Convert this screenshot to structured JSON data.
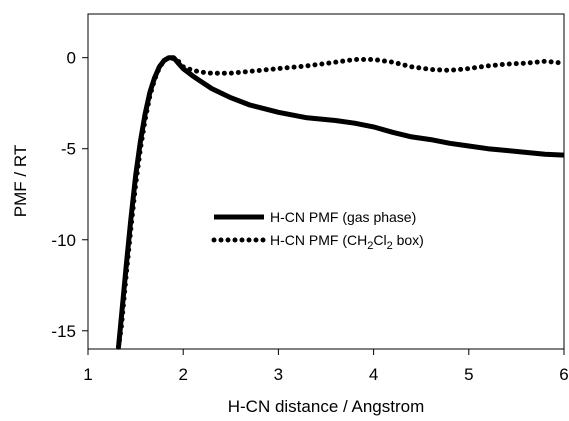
{
  "chart_data": {
    "type": "line",
    "xlabel": "H-CN distance / Angstrom",
    "ylabel": "PMF / RT",
    "xlim": [
      1,
      6
    ],
    "ylim": [
      -16,
      2.4
    ],
    "x_ticks": [
      "1",
      "2",
      "3",
      "4",
      "5",
      "6"
    ],
    "y_ticks": [
      "0",
      "-5",
      "-10",
      "-15"
    ],
    "legend_position": "center-right",
    "grid": false,
    "series": [
      {
        "name": "H-CN PMF (gas phase)",
        "style": "solid",
        "color": "#000000",
        "x": [
          1.32,
          1.35,
          1.4,
          1.45,
          1.5,
          1.55,
          1.6,
          1.65,
          1.7,
          1.75,
          1.8,
          1.85,
          1.9,
          1.95,
          2.0,
          2.1,
          2.2,
          2.3,
          2.5,
          2.7,
          3.0,
          3.3,
          3.6,
          3.8,
          4.0,
          4.2,
          4.4,
          4.6,
          4.8,
          5.0,
          5.2,
          5.4,
          5.6,
          5.8,
          6.0
        ],
        "y": [
          -15.9,
          -14.3,
          -11.5,
          -8.9,
          -6.5,
          -4.6,
          -3.1,
          -1.9,
          -1.1,
          -0.5,
          -0.15,
          0.0,
          0.0,
          -0.3,
          -0.6,
          -1.0,
          -1.35,
          -1.7,
          -2.2,
          -2.6,
          -3.0,
          -3.3,
          -3.45,
          -3.6,
          -3.8,
          -4.1,
          -4.35,
          -4.5,
          -4.7,
          -4.85,
          -5.0,
          -5.1,
          -5.2,
          -5.3,
          -5.35
        ]
      },
      {
        "name": "H-CN PMF (CH2Cl2 box)",
        "legend_main": "H-CN PMF (CH",
        "legend_sub1": "2",
        "legend_mid": "Cl",
        "legend_sub2": "2",
        "legend_end": " box)",
        "style": "dotted",
        "color": "#000000",
        "x": [
          1.32,
          1.35,
          1.4,
          1.45,
          1.5,
          1.55,
          1.6,
          1.65,
          1.7,
          1.75,
          1.8,
          1.85,
          1.9,
          1.95,
          2.0,
          2.1,
          2.2,
          2.3,
          2.5,
          2.7,
          3.0,
          3.3,
          3.6,
          3.8,
          4.0,
          4.2,
          4.4,
          4.6,
          4.8,
          5.0,
          5.2,
          5.4,
          5.6,
          5.8,
          6.0
        ],
        "y": [
          -15.9,
          -14.8,
          -12.0,
          -9.4,
          -7.0,
          -5.0,
          -3.4,
          -2.1,
          -1.2,
          -0.55,
          -0.15,
          0.0,
          -0.05,
          -0.2,
          -0.5,
          -0.7,
          -0.8,
          -0.85,
          -0.85,
          -0.75,
          -0.6,
          -0.45,
          -0.25,
          -0.1,
          -0.1,
          -0.25,
          -0.5,
          -0.65,
          -0.7,
          -0.6,
          -0.45,
          -0.35,
          -0.3,
          -0.2,
          -0.3
        ]
      }
    ]
  }
}
